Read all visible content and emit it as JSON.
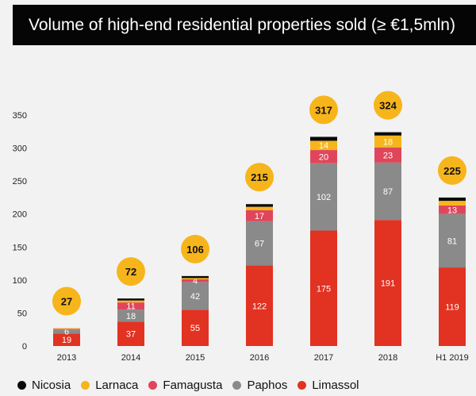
{
  "chart_data": {
    "type": "bar",
    "stacked": true,
    "title": "Volume of high-end residential properties sold (≥ €1,5mln)",
    "xlabel": "",
    "ylabel": "",
    "ylim": [
      0,
      350
    ],
    "yticks": [
      0,
      50,
      100,
      150,
      200,
      250,
      300,
      350
    ],
    "categories": [
      "2013",
      "2014",
      "2015",
      "2016",
      "2017",
      "2018",
      "H1 2019"
    ],
    "totals": [
      27,
      72,
      106,
      215,
      317,
      324,
      225
    ],
    "series": [
      {
        "name": "Limassol",
        "color": "#e23222",
        "values": [
          19,
          37,
          55,
          122,
          175,
          191,
          119
        ],
        "label_values": [
          "19",
          "37",
          "55",
          "122",
          "175",
          "191",
          "119"
        ]
      },
      {
        "name": "Paphos",
        "color": "#8a8a8a",
        "values": [
          6,
          18,
          42,
          67,
          102,
          87,
          81
        ],
        "label_values": [
          "6",
          "18",
          "42",
          "67",
          "102",
          "87",
          "81"
        ]
      },
      {
        "name": "Famagusta",
        "color": "#e0465b",
        "values": [
          1,
          11,
          4,
          17,
          20,
          23,
          13
        ],
        "label_values": [
          "",
          "11",
          "4",
          "17",
          "20",
          "23",
          "13"
        ]
      },
      {
        "name": "Larnaca",
        "color": "#f7b51c",
        "values": [
          1,
          3,
          2,
          5,
          14,
          18,
          7
        ],
        "label_values": [
          "",
          "",
          "",
          "",
          "14",
          "18",
          ""
        ]
      },
      {
        "name": "Nicosia",
        "color": "#0a0a0a",
        "values": [
          0,
          3,
          3,
          4,
          6,
          5,
          5
        ],
        "label_values": [
          "",
          "",
          "",
          "",
          "",
          "",
          ""
        ]
      }
    ],
    "legend_order": [
      "Nicosia",
      "Larnaca",
      "Famagusta",
      "Paphos",
      "Limassol"
    ],
    "legend_position": "bottom",
    "grid": false,
    "total_bubble_color": "#f7b51c"
  }
}
